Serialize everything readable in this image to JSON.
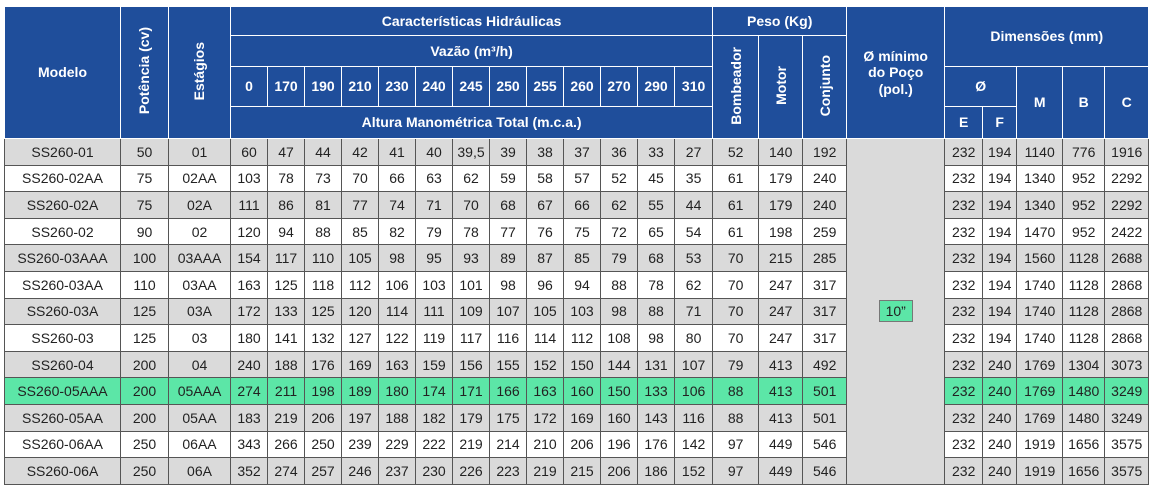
{
  "header": {
    "modelo": "Modelo",
    "potencia": "Potência (cv)",
    "estagios": "Estágios",
    "hidraulicas": "Características Hidráulicas",
    "vazao": "Vazão (m³/h)",
    "flows": [
      "0",
      "170",
      "190",
      "210",
      "230",
      "240",
      "245",
      "250",
      "255",
      "260",
      "270",
      "290",
      "310"
    ],
    "altura": "Altura Manométrica Total (m.c.a.)",
    "peso": "Peso (Kg)",
    "bombeador": "Bombeador",
    "motor": "Motor",
    "conjunto": "Conjunto",
    "poco": [
      "Ø mínimo",
      "do Poço",
      "(pol.)"
    ],
    "dimensoes": "Dimensões (mm)",
    "diam": "Ø",
    "e": "E",
    "f": "F",
    "m": "M",
    "b": "B",
    "c": "C"
  },
  "poco_value": "10”",
  "table": {
    "highlighted_row": 9,
    "rows": [
      [
        "SS260-01",
        "50",
        "01",
        "60",
        "47",
        "44",
        "42",
        "41",
        "40",
        "39,5",
        "39",
        "38",
        "37",
        "36",
        "33",
        "27",
        "52",
        "140",
        "192",
        "232",
        "194",
        "1140",
        "776",
        "1916"
      ],
      [
        "SS260-02AA",
        "75",
        "02AA",
        "103",
        "78",
        "73",
        "70",
        "66",
        "63",
        "62",
        "59",
        "58",
        "57",
        "52",
        "45",
        "35",
        "61",
        "179",
        "240",
        "232",
        "194",
        "1340",
        "952",
        "2292"
      ],
      [
        "SS260-02A",
        "75",
        "02A",
        "111",
        "86",
        "81",
        "77",
        "74",
        "71",
        "70",
        "68",
        "67",
        "66",
        "62",
        "55",
        "44",
        "61",
        "179",
        "240",
        "232",
        "194",
        "1340",
        "952",
        "2292"
      ],
      [
        "SS260-02",
        "90",
        "02",
        "120",
        "94",
        "88",
        "85",
        "82",
        "79",
        "78",
        "77",
        "76",
        "75",
        "72",
        "65",
        "54",
        "61",
        "198",
        "259",
        "232",
        "194",
        "1470",
        "952",
        "2422"
      ],
      [
        "SS260-03AAA",
        "100",
        "03AAA",
        "154",
        "117",
        "110",
        "105",
        "98",
        "95",
        "93",
        "89",
        "87",
        "85",
        "79",
        "68",
        "53",
        "70",
        "215",
        "285",
        "232",
        "194",
        "1560",
        "1128",
        "2688"
      ],
      [
        "SS260-03AA",
        "110",
        "03AA",
        "163",
        "125",
        "118",
        "112",
        "106",
        "103",
        "101",
        "98",
        "96",
        "94",
        "88",
        "78",
        "62",
        "70",
        "247",
        "317",
        "232",
        "194",
        "1740",
        "1128",
        "2868"
      ],
      [
        "SS260-03A",
        "125",
        "03A",
        "172",
        "133",
        "125",
        "120",
        "114",
        "111",
        "109",
        "107",
        "105",
        "103",
        "98",
        "88",
        "71",
        "70",
        "247",
        "317",
        "232",
        "194",
        "1740",
        "1128",
        "2868"
      ],
      [
        "SS260-03",
        "125",
        "03",
        "180",
        "141",
        "132",
        "127",
        "122",
        "119",
        "117",
        "116",
        "114",
        "112",
        "108",
        "98",
        "80",
        "70",
        "247",
        "317",
        "232",
        "194",
        "1740",
        "1128",
        "2868"
      ],
      [
        "SS260-04",
        "200",
        "04",
        "240",
        "188",
        "176",
        "169",
        "163",
        "159",
        "156",
        "155",
        "152",
        "150",
        "144",
        "131",
        "107",
        "79",
        "413",
        "492",
        "232",
        "240",
        "1769",
        "1304",
        "3073"
      ],
      [
        "SS260-05AAA",
        "200",
        "05AAA",
        "274",
        "211",
        "198",
        "189",
        "180",
        "174",
        "171",
        "166",
        "163",
        "160",
        "150",
        "133",
        "106",
        "88",
        "413",
        "501",
        "232",
        "240",
        "1769",
        "1480",
        "3249"
      ],
      [
        "SS260-05AA",
        "200",
        "05AA",
        "183",
        "219",
        "206",
        "197",
        "188",
        "182",
        "179",
        "175",
        "172",
        "169",
        "160",
        "143",
        "116",
        "88",
        "413",
        "501",
        "232",
        "240",
        "1769",
        "1480",
        "3249"
      ],
      [
        "SS260-06AA",
        "250",
        "06AA",
        "343",
        "266",
        "250",
        "239",
        "229",
        "222",
        "219",
        "214",
        "210",
        "206",
        "196",
        "176",
        "142",
        "97",
        "449",
        "546",
        "232",
        "240",
        "1919",
        "1656",
        "3575"
      ],
      [
        "SS260-06A",
        "250",
        "06A",
        "352",
        "274",
        "257",
        "246",
        "237",
        "230",
        "226",
        "223",
        "219",
        "215",
        "206",
        "186",
        "152",
        "97",
        "449",
        "546",
        "232",
        "240",
        "1919",
        "1656",
        "3575"
      ]
    ]
  }
}
